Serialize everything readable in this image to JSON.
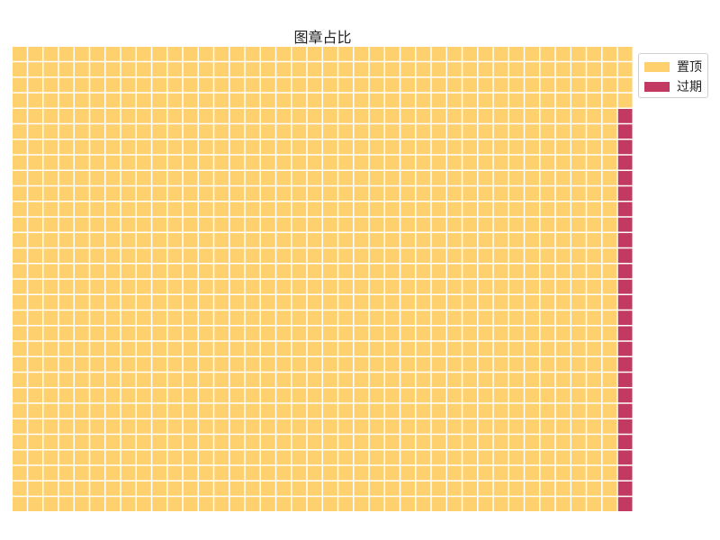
{
  "chart_data": {
    "type": "waffle",
    "title": "图章占比",
    "rows": 30,
    "columns": 40,
    "series": [
      {
        "name": "置顶",
        "value": 1174,
        "color": "#FFD06E"
      },
      {
        "name": "过期",
        "value": 46,
        "color": "#C23A61"
      }
    ],
    "legend_position": "top-right",
    "grid": false
  }
}
